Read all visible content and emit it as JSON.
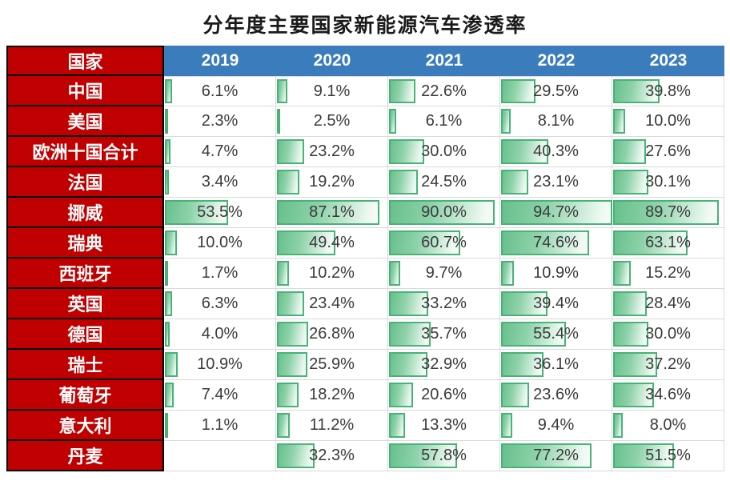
{
  "title": "分年度主要国家新能源汽车渗透率",
  "table": {
    "corner_header": "国家",
    "value_suffix": "%",
    "bar_scale_max": 94.7
  },
  "colors": {
    "header_blue": "#3B7CBC",
    "country_red": "#C00000",
    "bar_border_green": "#47B377",
    "bar_fill_green": "#68C08C",
    "grid_gray": "#D9D9D9",
    "value_text": "#3A3A3A",
    "row_divider_black": "#000000"
  },
  "chart_data": {
    "type": "table",
    "title": "分年度主要国家新能源汽车渗透率",
    "categories": [
      "2019",
      "2020",
      "2021",
      "2022",
      "2023"
    ],
    "unit": "%",
    "bar_style": "gradient-green-databar",
    "value_range": [
      0,
      94.7
    ],
    "series": [
      {
        "name": "中国",
        "values": [
          6.1,
          9.1,
          22.6,
          29.5,
          39.8
        ]
      },
      {
        "name": "美国",
        "values": [
          2.3,
          2.5,
          6.1,
          8.1,
          10.0
        ]
      },
      {
        "name": "欧洲十国合计",
        "values": [
          4.7,
          23.2,
          30.0,
          40.3,
          27.6
        ]
      },
      {
        "name": "法国",
        "values": [
          3.4,
          19.2,
          24.5,
          23.1,
          30.1
        ]
      },
      {
        "name": "挪威",
        "values": [
          53.5,
          87.1,
          90.0,
          94.7,
          89.7
        ]
      },
      {
        "name": "瑞典",
        "values": [
          10.0,
          49.4,
          60.7,
          74.6,
          63.1
        ]
      },
      {
        "name": "西班牙",
        "values": [
          1.7,
          10.2,
          9.7,
          10.9,
          15.2
        ]
      },
      {
        "name": "英国",
        "values": [
          6.3,
          23.4,
          33.2,
          39.4,
          28.4
        ]
      },
      {
        "name": "德国",
        "values": [
          4.0,
          26.8,
          35.7,
          55.4,
          30.0
        ]
      },
      {
        "name": "瑞士",
        "values": [
          10.9,
          25.9,
          32.9,
          36.1,
          37.2
        ]
      },
      {
        "name": "葡萄牙",
        "values": [
          7.4,
          18.2,
          20.6,
          23.6,
          34.6
        ]
      },
      {
        "name": "意大利",
        "values": [
          1.1,
          11.2,
          13.3,
          9.4,
          8.0
        ]
      },
      {
        "name": "丹麦",
        "values": [
          null,
          32.3,
          57.8,
          77.2,
          51.5
        ]
      }
    ]
  }
}
